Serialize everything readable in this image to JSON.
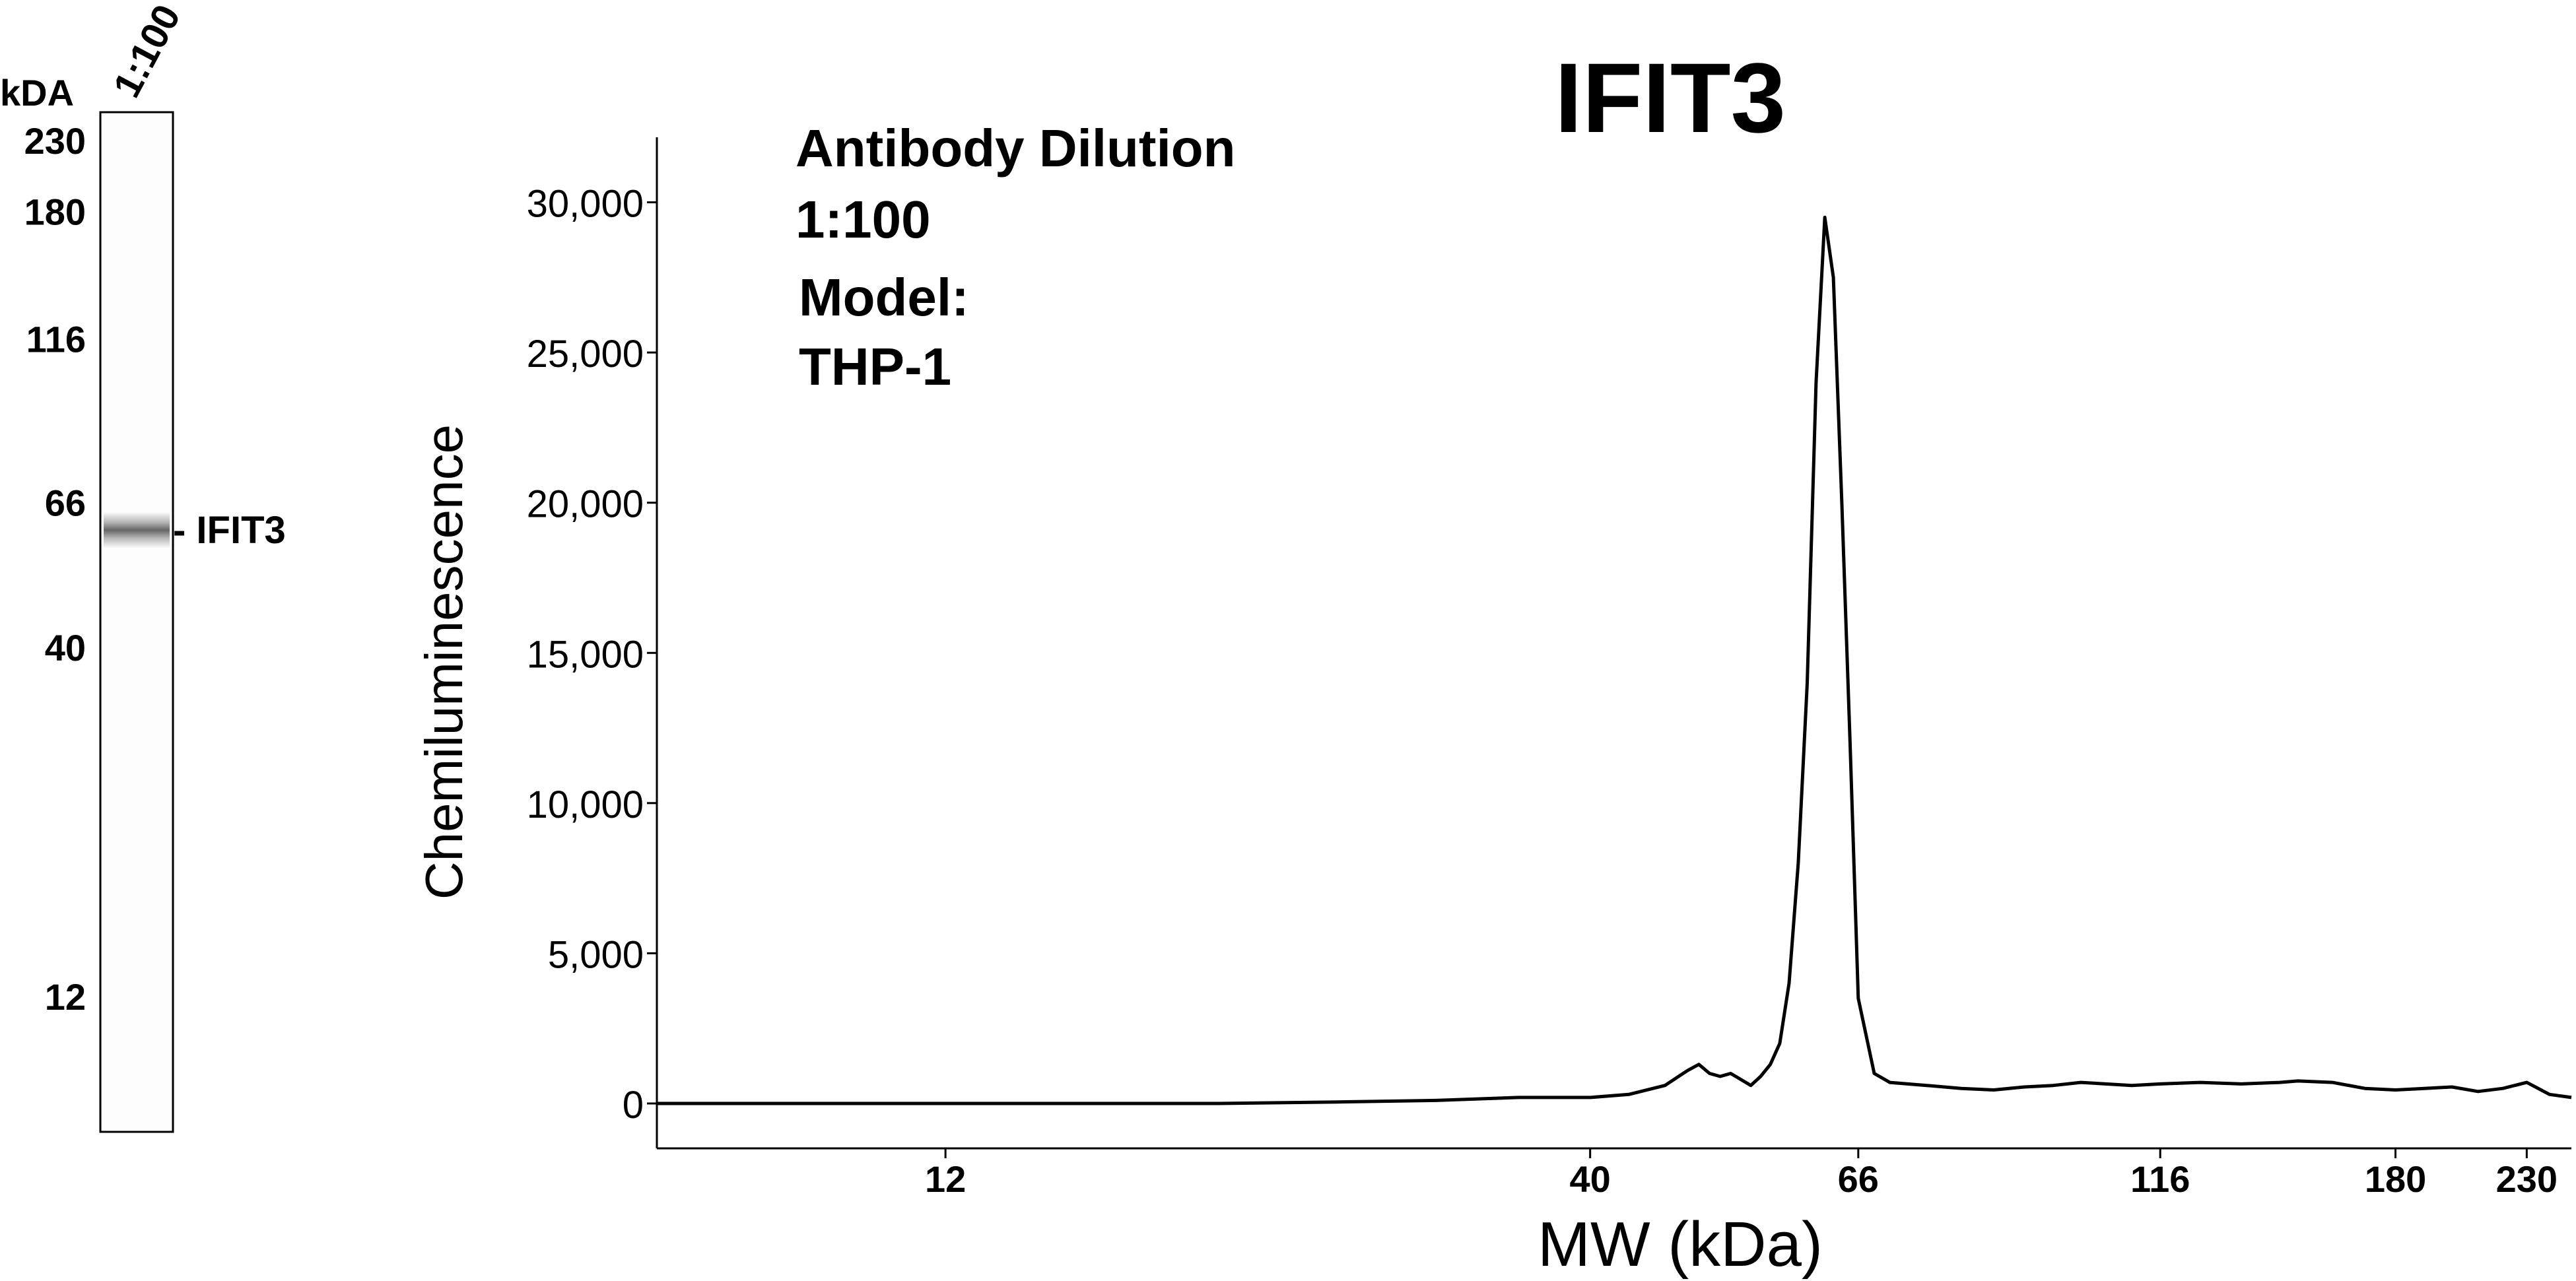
{
  "gel": {
    "unit_label": "kDA",
    "lane_label": "1:100",
    "markers": [
      "230",
      "180",
      "116",
      "66",
      "40",
      "12"
    ],
    "band_label": "- IFIT3",
    "band_kda": 60
  },
  "chart_data": {
    "type": "line",
    "title": "IFIT3",
    "xlabel": "MW (kDa)",
    "ylabel": "Chemiluminescence",
    "x_scale": "log",
    "xlim": [
      7,
      250
    ],
    "ylim": [
      0,
      33000
    ],
    "x_ticks": [
      12,
      40,
      66,
      116,
      180,
      230
    ],
    "y_ticks": [
      0,
      5000,
      10000,
      15000,
      20000,
      25000,
      30000
    ],
    "y_tick_labels": [
      "0",
      "5,000",
      "10,000",
      "15,000",
      "20,000",
      "25,000",
      "30,000"
    ],
    "annotations": [
      "Antibody Dilution",
      "1:100",
      "Model:",
      "THP-1"
    ],
    "series": [
      {
        "x": [
          7,
          9,
          12,
          15,
          20,
          25,
          30,
          35,
          40,
          43,
          46,
          48,
          49,
          50,
          51,
          52,
          53,
          54,
          55,
          56,
          57,
          58,
          59,
          60,
          61,
          62,
          63,
          64,
          65,
          66,
          68,
          70,
          75,
          80,
          85,
          90,
          95,
          100,
          110,
          116,
          125,
          135,
          145,
          150,
          160,
          170,
          180,
          190,
          200,
          210,
          220,
          230,
          240,
          250
        ],
        "y": [
          0,
          0,
          0,
          0,
          0,
          50,
          100,
          200,
          200,
          300,
          600,
          1100,
          1300,
          1000,
          900,
          1000,
          800,
          600,
          900,
          1300,
          2000,
          4000,
          8000,
          14000,
          24000,
          29500,
          27500,
          20000,
          12000,
          3500,
          1000,
          700,
          600,
          500,
          450,
          550,
          600,
          700,
          600,
          650,
          700,
          650,
          700,
          750,
          700,
          500,
          450,
          500,
          550,
          400,
          500,
          700,
          300,
          200
        ]
      }
    ]
  }
}
